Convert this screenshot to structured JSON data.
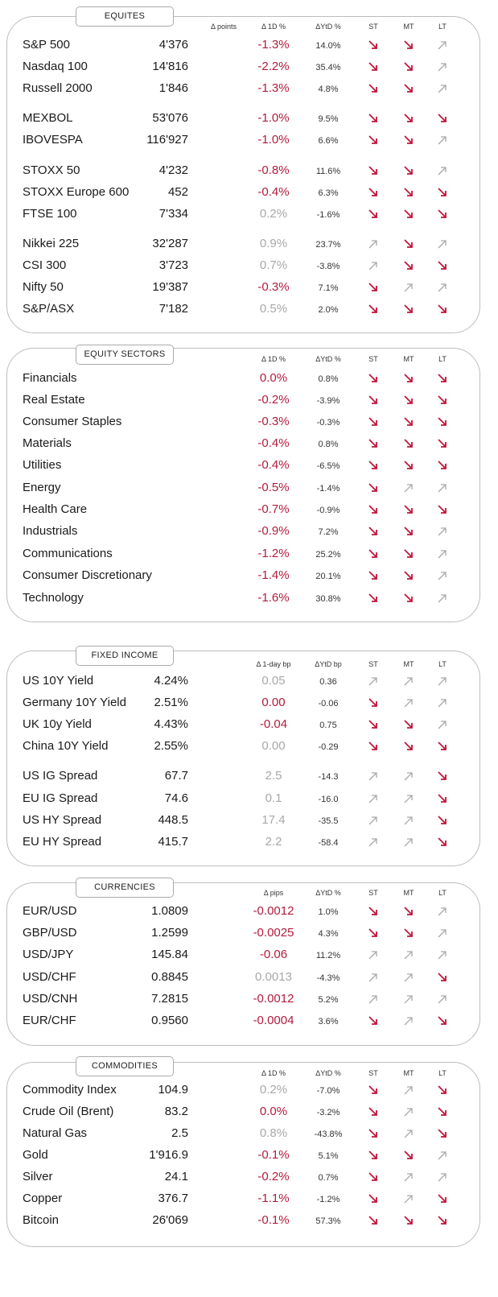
{
  "colors": {
    "negative": "#b31b3c",
    "positive": "#a8a8a8",
    "arrow_down": "#c0153a",
    "arrow_up": "#a9a9a9"
  },
  "sections": [
    {
      "id": "equities",
      "title": "EQUITES",
      "headers": {
        "change": "Δ points",
        "pct": "Δ 1D %",
        "ytd": "ΔYtD %",
        "st": "ST",
        "mt": "MT",
        "lt": "LT"
      },
      "rows": [
        {
          "name": "S&P 500",
          "level": "4'376",
          "chg": "-1.3%",
          "dir": "neg",
          "ytd": "14.0%",
          "st": "down",
          "mt": "down",
          "lt": "up"
        },
        {
          "name": "Nasdaq 100",
          "level": "14'816",
          "chg": "-2.2%",
          "dir": "neg",
          "ytd": "35.4%",
          "st": "down",
          "mt": "down",
          "lt": "up"
        },
        {
          "name": "Russell 2000",
          "level": "1'846",
          "chg": "-1.3%",
          "dir": "neg",
          "ytd": "4.8%",
          "st": "down",
          "mt": "down",
          "lt": "up"
        },
        {
          "name": "MEXBOL",
          "level": "53'076",
          "chg": "-1.0%",
          "dir": "neg",
          "ytd": "9.5%",
          "st": "down",
          "mt": "down",
          "lt": "down"
        },
        {
          "name": "IBOVESPA",
          "level": "116'927",
          "chg": "-1.0%",
          "dir": "neg",
          "ytd": "6.6%",
          "st": "down",
          "mt": "down",
          "lt": "up"
        },
        {
          "name": "STOXX 50",
          "level": "4'232",
          "chg": "-0.8%",
          "dir": "neg",
          "ytd": "11.6%",
          "st": "down",
          "mt": "down",
          "lt": "up"
        },
        {
          "name": "STOXX Europe 600",
          "level": "452",
          "chg": "-0.4%",
          "dir": "neg",
          "ytd": "6.3%",
          "st": "down",
          "mt": "down",
          "lt": "down"
        },
        {
          "name": "FTSE 100",
          "level": "7'334",
          "chg": "0.2%",
          "dir": "pos",
          "ytd": "-1.6%",
          "st": "down",
          "mt": "down",
          "lt": "down"
        },
        {
          "name": "Nikkei 225",
          "level": "32'287",
          "chg": "0.9%",
          "dir": "pos",
          "ytd": "23.7%",
          "st": "up",
          "mt": "down",
          "lt": "up"
        },
        {
          "name": "CSI 300",
          "level": "3'723",
          "chg": "0.7%",
          "dir": "pos",
          "ytd": "-3.8%",
          "st": "up",
          "mt": "down",
          "lt": "down"
        },
        {
          "name": "Nifty  50",
          "level": "19'387",
          "chg": "-0.3%",
          "dir": "neg",
          "ytd": "7.1%",
          "st": "down",
          "mt": "up",
          "lt": "up"
        },
        {
          "name": "S&P/ASX",
          "level": "7'182",
          "chg": "0.5%",
          "dir": "pos",
          "ytd": "2.0%",
          "st": "down",
          "mt": "down",
          "lt": "down"
        }
      ]
    },
    {
      "id": "sectors",
      "title": "EQUITY  SECTORS",
      "headers": {
        "change": "",
        "pct": "Δ 1D %",
        "ytd": "ΔYtD %",
        "st": "ST",
        "mt": "MT",
        "lt": "LT"
      },
      "rows": [
        {
          "name": "Financials",
          "level": "",
          "chg": "0.0%",
          "dir": "neg",
          "ytd": "0.8%",
          "st": "down",
          "mt": "down",
          "lt": "down"
        },
        {
          "name": "Real Estate",
          "level": "",
          "chg": "-0.2%",
          "dir": "neg",
          "ytd": "-3.9%",
          "st": "down",
          "mt": "down",
          "lt": "down"
        },
        {
          "name": "Consumer Staples",
          "level": "",
          "chg": "-0.3%",
          "dir": "neg",
          "ytd": "-0.3%",
          "st": "down",
          "mt": "down",
          "lt": "down"
        },
        {
          "name": "Materials",
          "level": "",
          "chg": "-0.4%",
          "dir": "neg",
          "ytd": "0.8%",
          "st": "down",
          "mt": "down",
          "lt": "down"
        },
        {
          "name": "Utilities",
          "level": "",
          "chg": "-0.4%",
          "dir": "neg",
          "ytd": "-6.5%",
          "st": "down",
          "mt": "down",
          "lt": "down"
        },
        {
          "name": "Energy",
          "level": "",
          "chg": "-0.5%",
          "dir": "neg",
          "ytd": "-1.4%",
          "st": "down",
          "mt": "up",
          "lt": "up"
        },
        {
          "name": "Health Care",
          "level": "",
          "chg": "-0.7%",
          "dir": "neg",
          "ytd": "-0.9%",
          "st": "down",
          "mt": "down",
          "lt": "down"
        },
        {
          "name": "Industrials",
          "level": "",
          "chg": "-0.9%",
          "dir": "neg",
          "ytd": "7.2%",
          "st": "down",
          "mt": "down",
          "lt": "up"
        },
        {
          "name": "Communications",
          "level": "",
          "chg": "-1.2%",
          "dir": "neg",
          "ytd": "25.2%",
          "st": "down",
          "mt": "down",
          "lt": "up"
        },
        {
          "name": "Consumer Discretionary",
          "level": "",
          "chg": "-1.4%",
          "dir": "neg",
          "ytd": "20.1%",
          "st": "down",
          "mt": "down",
          "lt": "up"
        },
        {
          "name": "Technology",
          "level": "",
          "chg": "-1.6%",
          "dir": "neg",
          "ytd": "30.8%",
          "st": "down",
          "mt": "down",
          "lt": "up"
        }
      ]
    },
    {
      "id": "fixed",
      "title": "FIXED  INCOME",
      "headers": {
        "change": "",
        "pct": "Δ 1-day bp",
        "ytd": "ΔYtD bp",
        "st": "ST",
        "mt": "MT",
        "lt": "LT"
      },
      "rows": [
        {
          "name": "US 10Y Yield",
          "level": "4.24%",
          "chg": "0.05",
          "dir": "pos",
          "ytd": "0.36",
          "st": "up",
          "mt": "up",
          "lt": "up"
        },
        {
          "name": "Germany 10Y Yield",
          "level": "2.51%",
          "chg": "0.00",
          "dir": "neg",
          "ytd": "-0.06",
          "st": "down",
          "mt": "up",
          "lt": "up"
        },
        {
          "name": "UK 10y Yield",
          "level": "4.43%",
          "chg": "-0.04",
          "dir": "neg",
          "ytd": "0.75",
          "st": "down",
          "mt": "down",
          "lt": "up"
        },
        {
          "name": "China 10Y Yield",
          "level": "2.55%",
          "chg": "0.00",
          "dir": "pos",
          "ytd": "-0.29",
          "st": "down",
          "mt": "down",
          "lt": "down"
        },
        {
          "name": "US IG Spread",
          "level": "67.7",
          "chg": "2.5",
          "dir": "pos",
          "ytd": "-14.3",
          "st": "up",
          "mt": "up",
          "lt": "down"
        },
        {
          "name": "EU IG Spread",
          "level": "74.6",
          "chg": "0.1",
          "dir": "pos",
          "ytd": "-16.0",
          "st": "up",
          "mt": "up",
          "lt": "down"
        },
        {
          "name": "US HY Spread",
          "level": "448.5",
          "chg": "17.4",
          "dir": "pos",
          "ytd": "-35.5",
          "st": "up",
          "mt": "up",
          "lt": "down"
        },
        {
          "name": "EU HY Spread",
          "level": "415.7",
          "chg": "2.2",
          "dir": "pos",
          "ytd": "-58.4",
          "st": "up",
          "mt": "up",
          "lt": "down"
        }
      ]
    },
    {
      "id": "currencies",
      "title": "CURRENCIES",
      "headers": {
        "change": "",
        "pct": "Δ pips",
        "ytd": "ΔYtD %",
        "st": "ST",
        "mt": "MT",
        "lt": "LT"
      },
      "rows": [
        {
          "name": "EUR/USD",
          "level": "1.0809",
          "chg": "-0.0012",
          "dir": "neg",
          "ytd": "1.0%",
          "st": "down",
          "mt": "down",
          "lt": "up"
        },
        {
          "name": "GBP/USD",
          "level": "1.2599",
          "chg": "-0.0025",
          "dir": "neg",
          "ytd": "4.3%",
          "st": "down",
          "mt": "down",
          "lt": "up"
        },
        {
          "name": "USD/JPY",
          "level": "145.84",
          "chg": "-0.06",
          "dir": "neg",
          "ytd": "11.2%",
          "st": "up",
          "mt": "up",
          "lt": "up"
        },
        {
          "name": "USD/CHF",
          "level": "0.8845",
          "chg": "0.0013",
          "dir": "pos",
          "ytd": "-4.3%",
          "st": "up",
          "mt": "up",
          "lt": "down"
        },
        {
          "name": "USD/CNH",
          "level": "7.2815",
          "chg": "-0.0012",
          "dir": "neg",
          "ytd": "5.2%",
          "st": "up",
          "mt": "up",
          "lt": "up"
        },
        {
          "name": "EUR/CHF",
          "level": "0.9560",
          "chg": "-0.0004",
          "dir": "neg",
          "ytd": "3.6%",
          "st": "down",
          "mt": "up",
          "lt": "down"
        }
      ]
    },
    {
      "id": "commodities",
      "title": "COMMODITIES",
      "headers": {
        "change": "",
        "pct": "Δ 1D %",
        "ytd": "ΔYtD %",
        "st": "ST",
        "mt": "MT",
        "lt": "LT"
      },
      "rows": [
        {
          "name": "Commodity Index",
          "level": "104.9",
          "chg": "0.2%",
          "dir": "pos",
          "ytd": "-7.0%",
          "st": "down",
          "mt": "up",
          "lt": "down"
        },
        {
          "name": "Crude Oil (Brent)",
          "level": "83.2",
          "chg": "0.0%",
          "dir": "neg",
          "ytd": "-3.2%",
          "st": "down",
          "mt": "up",
          "lt": "down"
        },
        {
          "name": "Natural Gas",
          "level": "2.5",
          "chg": "0.8%",
          "dir": "pos",
          "ytd": "-43.8%",
          "st": "down",
          "mt": "up",
          "lt": "down"
        },
        {
          "name": "Gold",
          "level": "1'916.9",
          "chg": "-0.1%",
          "dir": "neg",
          "ytd": "5.1%",
          "st": "down",
          "mt": "down",
          "lt": "up"
        },
        {
          "name": "Silver",
          "level": "24.1",
          "chg": "-0.2%",
          "dir": "neg",
          "ytd": "0.7%",
          "st": "down",
          "mt": "up",
          "lt": "up"
        },
        {
          "name": "Copper",
          "level": "376.7",
          "chg": "-1.1%",
          "dir": "neg",
          "ytd": "-1.2%",
          "st": "down",
          "mt": "up",
          "lt": "down"
        },
        {
          "name": "Bitcoin",
          "level": "26'069",
          "chg": "-0.1%",
          "dir": "neg",
          "ytd": "57.3%",
          "st": "down",
          "mt": "down",
          "lt": "down"
        }
      ]
    }
  ]
}
